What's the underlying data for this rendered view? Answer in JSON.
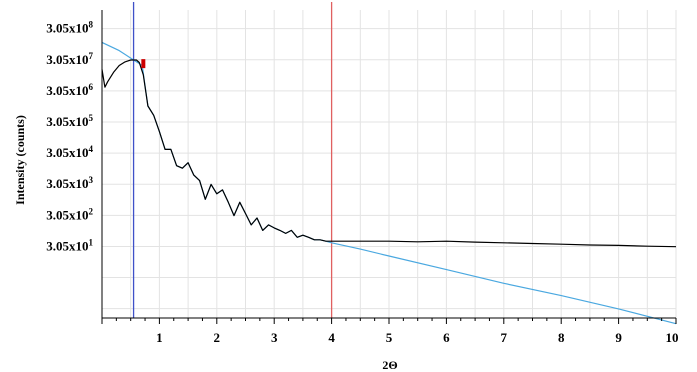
{
  "chart_data": {
    "type": "line",
    "xlabel": "2Θ",
    "ylabel": "Intensity (counts)",
    "y_scale": "log",
    "xlim": [
      0,
      10
    ],
    "x_ticks": [
      1,
      2,
      3,
      4,
      5,
      6,
      7,
      8,
      9,
      10
    ],
    "x_tick_labels": [
      "1",
      "2",
      "3",
      "4",
      "5",
      "6",
      "7",
      "8",
      "9",
      "10"
    ],
    "y_tick_exponents": [
      8,
      7,
      6,
      5,
      4,
      3,
      2,
      1
    ],
    "y_tick_labels": [
      "3.05x10",
      "3.05x10",
      "3.05x10",
      "3.05x10",
      "3.05x10",
      "3.05x10",
      "3.05x10",
      "3.05x10"
    ],
    "y_tick_superscripts": [
      "8",
      "7",
      "6",
      "5",
      "4",
      "3",
      "2",
      "1"
    ],
    "grid": true,
    "vertical_markers": [
      {
        "x": 0.55,
        "color": "#3f51c8"
      },
      {
        "x": 4.0,
        "color": "#e06060"
      }
    ],
    "highlight_marker": {
      "x": 0.72,
      "color": "#cc0000"
    },
    "series": [
      {
        "color": "#000000",
        "x": [
          0.0,
          0.05,
          0.1,
          0.2,
          0.3,
          0.4,
          0.5,
          0.6,
          0.65,
          0.72,
          0.8,
          0.9,
          1.0,
          1.1,
          1.2,
          1.3,
          1.4,
          1.5,
          1.6,
          1.7,
          1.8,
          1.9,
          2.0,
          2.1,
          2.2,
          2.3,
          2.4,
          2.5,
          2.6,
          2.7,
          2.8,
          2.9,
          3.0,
          3.1,
          3.2,
          3.3,
          3.4,
          3.5,
          3.6,
          3.7,
          3.8,
          3.9,
          4.0,
          4.5,
          5.0,
          5.5,
          6.0,
          6.5,
          7.0,
          7.5,
          8.0,
          8.5,
          9.0,
          9.5,
          10.0
        ],
        "y": [
          15000000.0,
          4000000.0,
          6000000.0,
          12000000.0,
          20000000.0,
          26000000.0,
          30000000.0,
          30000000.0,
          25000000.0,
          10000000.0,
          1000000.0,
          500000.0,
          150000.0,
          40000.0,
          40000.0,
          12000.0,
          10000.0,
          15000.0,
          6000.0,
          4000.0,
          1000.0,
          3000.0,
          1500.0,
          2000.0,
          800.0,
          300.0,
          800.0,
          350.0,
          150.0,
          250.0,
          100.0,
          150.0,
          120.0,
          100.0,
          80.0,
          100.0,
          60.0,
          70.0,
          60.0,
          50.0,
          50.0,
          45.0,
          45.0,
          45.0,
          45.0,
          43.0,
          45.0,
          42.0,
          40.0,
          38.0,
          36.0,
          34.0,
          33.0,
          31.0,
          30.0
        ]
      },
      {
        "color": "#4aa8e0",
        "x": [
          0.0,
          0.3,
          0.55,
          0.7,
          0.8,
          0.9,
          1.0,
          1.1,
          1.2,
          1.3,
          1.4,
          1.5,
          1.6,
          1.7,
          1.8,
          1.9,
          2.0,
          2.1,
          2.2,
          2.3,
          2.4,
          2.5,
          2.6,
          2.7,
          2.8,
          2.9,
          3.0,
          3.1,
          3.2,
          3.3,
          3.4,
          3.5,
          3.6,
          3.7,
          3.8,
          3.9,
          4.0,
          4.5,
          5.0,
          6.0,
          7.0,
          8.0,
          9.0,
          10.0
        ],
        "y": [
          110000000.0,
          60000000.0,
          30000000.0,
          20000000.0,
          1000000.0,
          500000.0,
          150000.0,
          40000.0,
          40000.0,
          12000.0,
          10000.0,
          15000.0,
          6000.0,
          4000.0,
          1000.0,
          3000.0,
          1500.0,
          2000.0,
          800.0,
          300.0,
          800.0,
          350.0,
          150.0,
          250.0,
          100.0,
          150.0,
          120.0,
          100.0,
          80.0,
          100.0,
          60.0,
          70.0,
          60.0,
          50.0,
          50.0,
          45.0,
          40.0,
          25.0,
          15.0,
          5.5,
          2.0,
          0.8,
          0.3,
          0.1
        ]
      }
    ]
  }
}
